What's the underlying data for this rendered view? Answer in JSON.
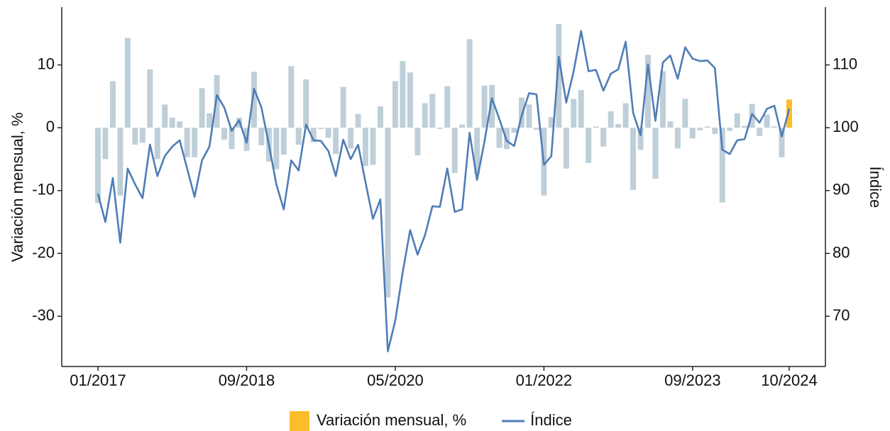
{
  "chart_data": {
    "type": "bar_line",
    "ylabel": "Variación mensual, %",
    "y2label": "Índice",
    "categories": [
      "01/2017",
      null,
      null,
      null,
      null,
      null,
      null,
      null,
      null,
      null,
      null,
      null,
      null,
      null,
      null,
      null,
      null,
      null,
      null,
      null,
      "09/2018",
      null,
      null,
      null,
      null,
      null,
      null,
      null,
      null,
      null,
      null,
      null,
      null,
      null,
      null,
      null,
      null,
      null,
      null,
      null,
      "05/2020",
      null,
      null,
      null,
      null,
      null,
      null,
      null,
      null,
      null,
      null,
      null,
      null,
      null,
      null,
      null,
      null,
      null,
      null,
      null,
      "01/2022",
      null,
      null,
      null,
      null,
      null,
      null,
      null,
      null,
      null,
      null,
      null,
      null,
      null,
      null,
      null,
      null,
      null,
      null,
      null,
      "09/2023",
      null,
      null,
      null,
      null,
      null,
      null,
      null,
      null,
      null,
      null,
      null,
      null,
      "10/2024"
    ],
    "series": [
      {
        "name": "Variación mensual, %",
        "type": "bar",
        "color": "#bfcfd9",
        "highlight_last_color": "#fbbd2b",
        "values": [
          -12,
          -5,
          7.4,
          -10.8,
          14.3,
          -2.7,
          -2.4,
          9.3,
          -5,
          3.7,
          1.6,
          1,
          -4.7,
          -4.7,
          6.3,
          2.3,
          8.4,
          -1.9,
          -3.4,
          1.6,
          -3.7,
          8.9,
          -2.8,
          -5.4,
          -6.6,
          -4.3,
          9.8,
          -2.7,
          7.7,
          -2.3,
          -0.2,
          -1.6,
          -4.2,
          6.5,
          -3.3,
          2.2,
          -6.1,
          -5.9,
          3.4,
          -27,
          7.4,
          10.6,
          8.8,
          -4.4,
          3.9,
          5.4,
          -0.2,
          6.6,
          -7.2,
          0.5,
          14.1,
          -7.4,
          6.7,
          6.8,
          -3.2,
          -3.4,
          -0.8,
          4.8,
          3.7,
          -0.3,
          -10.8,
          1.7,
          16.5,
          -6.5,
          4.6,
          6,
          -5.6,
          0.2,
          -3,
          2.6,
          0.6,
          3.9,
          -9.9,
          -3.5,
          11.6,
          -8.1,
          9,
          1,
          -3.3,
          4.6,
          -1.7,
          -0.4,
          0.2,
          -1,
          -11.9,
          -0.5,
          2.3,
          0.3,
          3.8,
          -1.3,
          2.1,
          0.2,
          -4.7,
          4.5
        ]
      },
      {
        "name": "Índice",
        "type": "line",
        "axis": "y2",
        "color": "#4f7db5",
        "values": [
          89.5,
          85,
          92,
          81.7,
          93.5,
          91,
          88.8,
          97.3,
          92.3,
          95.5,
          97,
          98,
          93.5,
          89,
          94.8,
          97,
          105.2,
          103.2,
          99.5,
          101.2,
          97.6,
          106.2,
          103.2,
          97.3,
          91,
          87,
          94.8,
          93.2,
          100.5,
          98,
          97.9,
          96.3,
          92.3,
          98.1,
          95,
          97.3,
          91.3,
          85.5,
          88.6,
          64.4,
          69.3,
          77,
          83.7,
          79.8,
          82.9,
          87.5,
          87.4,
          93.5,
          86.6,
          87,
          99.2,
          91.7,
          97.8,
          104.7,
          101.4,
          97.9,
          97.1,
          101.9,
          105.5,
          105.3,
          94.1,
          95.5,
          111.3,
          104,
          109,
          115.4,
          109,
          109.2,
          105.9,
          108.6,
          109.3,
          113.7,
          102.4,
          98.8,
          110.1,
          101.1,
          110.4,
          111.5,
          107.8,
          112.8,
          111,
          110.6,
          110.7,
          109.5,
          96.5,
          95.8,
          98,
          98.2,
          102.2,
          100.8,
          103,
          103.5,
          98.6,
          103
        ]
      }
    ],
    "ylim": [
      -38,
      19.2
    ],
    "yticks": [
      -30,
      -20,
      -10,
      0,
      10
    ],
    "y2lim": [
      62,
      119.2
    ],
    "y2ticks": [
      70,
      80,
      90,
      100,
      110
    ],
    "legend": "bottom"
  }
}
